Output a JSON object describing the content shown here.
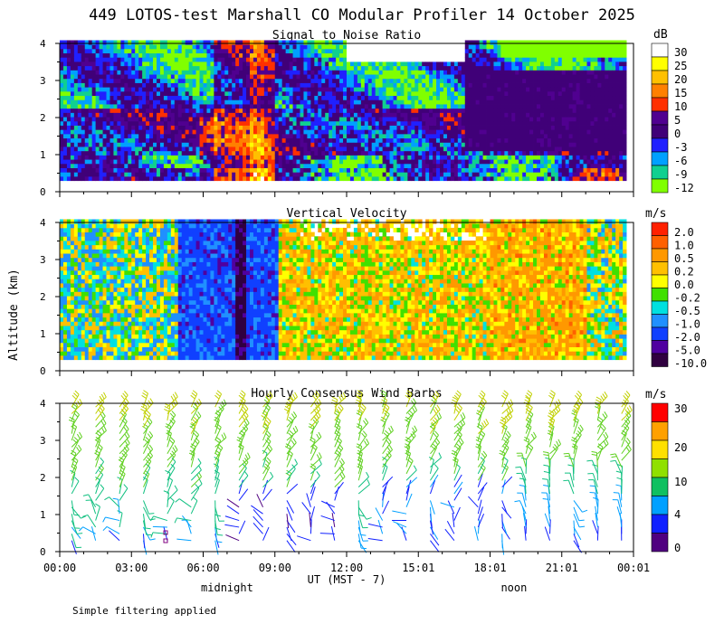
{
  "title": "449 LOTOS-test Marshall CO Modular Profiler 14 October 2025",
  "ylabel": "Altitude (km)",
  "xaxis": {
    "label": "UT  (MST - 7)",
    "ticks": [
      "00:00",
      "03:00",
      "06:00",
      "09:00",
      "12:00",
      "15:01",
      "18:01",
      "21:01",
      "00:01"
    ],
    "local_labels": [
      {
        "text": "midnight",
        "hour": 7
      },
      {
        "text": "noon",
        "hour": 19
      }
    ]
  },
  "footer": "Simple filtering applied",
  "chart_data": [
    {
      "type": "heatmap",
      "title": "Signal to Noise Ratio",
      "xlabel": "UT  (MST - 7)",
      "ylabel": "Altitude (km)",
      "x_range_hours": [
        0,
        24
      ],
      "ylim": [
        0,
        4
      ],
      "y_ticks": [
        "0",
        "1",
        "2",
        "3",
        "4"
      ],
      "colorbar": {
        "unit": "dB",
        "levels": [
          "30",
          "25",
          "20",
          "15",
          "10",
          "5",
          "0",
          "-3",
          "-6",
          "-9",
          "-12"
        ],
        "colors": [
          "#ffffff",
          "#ffff00",
          "#ffc000",
          "#ff8000",
          "#ff3000",
          "#500090",
          "#400078",
          "#2020ff",
          "#00a0ff",
          "#10d090",
          "#80ff00"
        ]
      },
      "grid": false
    },
    {
      "type": "heatmap",
      "title": "Vertical Velocity",
      "xlabel": "UT  (MST - 7)",
      "ylabel": "Altitude (km)",
      "x_range_hours": [
        0,
        24
      ],
      "ylim": [
        0,
        4
      ],
      "y_ticks": [
        "0",
        "1",
        "2",
        "3",
        "4"
      ],
      "colorbar": {
        "unit": "m/s",
        "levels": [
          "2.0",
          "1.0",
          "0.5",
          "0.2",
          "0.0",
          "-0.2",
          "-0.5",
          "-1.0",
          "-2.0",
          "-5.0",
          "-10.0"
        ],
        "colors": [
          "#ff2000",
          "#ff6000",
          "#ff9800",
          "#ffc000",
          "#ffff00",
          "#40e000",
          "#00e0e0",
          "#2090ff",
          "#1040ff",
          "#5000a0",
          "#300040"
        ]
      },
      "grid": false
    },
    {
      "type": "scatter",
      "title": "Hourly Consensus Wind Barbs",
      "xlabel": "UT  (MST - 7)",
      "ylabel": "Altitude (km)",
      "x_range_hours": [
        0,
        24
      ],
      "ylim": [
        0,
        4
      ],
      "y_ticks": [
        "0",
        "1",
        "2",
        "3",
        "4"
      ],
      "colorbar": {
        "unit": "m/s",
        "levels": [
          "30",
          "20",
          "10",
          "4",
          "0"
        ],
        "colors": [
          "#ff0000",
          "#ffa000",
          "#ffe000",
          "#90e000",
          "#10c060",
          "#00a0ff",
          "#1020ff",
          "#500080"
        ]
      },
      "grid": false
    }
  ]
}
